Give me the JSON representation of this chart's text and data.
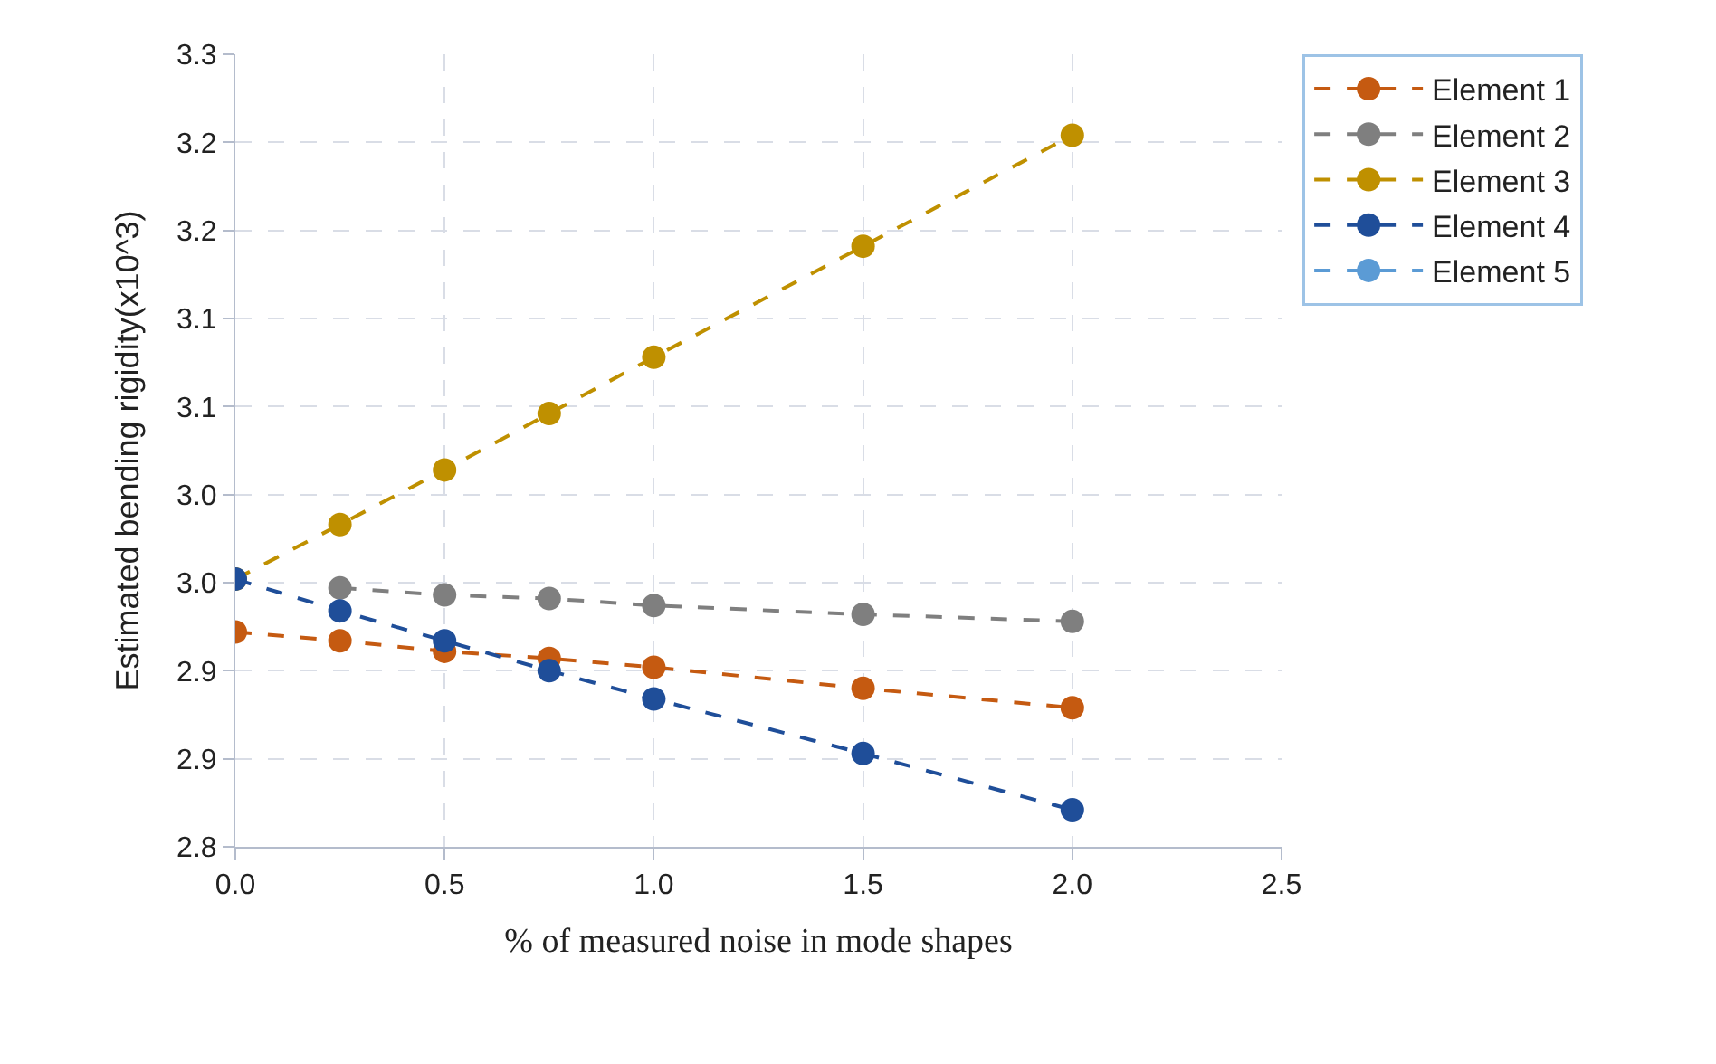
{
  "chart_data": {
    "type": "line",
    "xlabel": "% of measured noise in mode shapes",
    "ylabel": "Estimated bending rigidity(x10^3)",
    "x": [
      0,
      0.25,
      0.5,
      0.75,
      1.0,
      1.5,
      2.0
    ],
    "series": [
      {
        "name": "Element 1",
        "color": "#c55a11",
        "values": [
          2.922,
          2.917,
          2.911,
          2.907,
          2.902,
          2.89,
          2.879
        ]
      },
      {
        "name": "Element 2",
        "color": "#7f7f7f",
        "values": [
          null,
          2.947,
          2.943,
          2.941,
          2.937,
          2.932,
          2.928
        ]
      },
      {
        "name": "Element 3",
        "color": "#bf9000",
        "values": [
          2.952,
          2.983,
          3.014,
          3.046,
          3.078,
          3.141,
          3.204
        ]
      },
      {
        "name": "Element 4",
        "color": "#1f4e99",
        "values": [
          2.952,
          2.934,
          2.917,
          2.9,
          2.884,
          2.853,
          2.821
        ]
      },
      {
        "name": "Element 5",
        "color": "#5b9bd5",
        "values": [
          null,
          null,
          null,
          null,
          null,
          null,
          null
        ]
      }
    ],
    "xlim": [
      0,
      2.5
    ],
    "xticks": [
      {
        "value": 0,
        "label": "0.0"
      },
      {
        "value": 0.5,
        "label": "0.5"
      },
      {
        "value": 1.0,
        "label": "1.0"
      },
      {
        "value": 1.5,
        "label": "1.5"
      },
      {
        "value": 2.0,
        "label": "2.0"
      },
      {
        "value": 2.5,
        "label": "2.5"
      }
    ],
    "ylim": [
      2.8,
      3.25
    ],
    "yticks": [
      {
        "value": 2.8,
        "label": "2.8"
      },
      {
        "value": 2.85,
        "label": "2.9"
      },
      {
        "value": 2.9,
        "label": "2.9"
      },
      {
        "value": 2.95,
        "label": "3.0"
      },
      {
        "value": 3.0,
        "label": "3.0"
      },
      {
        "value": 3.05,
        "label": "3.1"
      },
      {
        "value": 3.1,
        "label": "3.1"
      },
      {
        "value": 3.15,
        "label": "3.2"
      },
      {
        "value": 3.2,
        "label": "3.2"
      },
      {
        "value": 3.25,
        "label": "3.3"
      }
    ],
    "grid": true,
    "legend": "top right",
    "marker": "circle",
    "line_style": "dashed"
  }
}
